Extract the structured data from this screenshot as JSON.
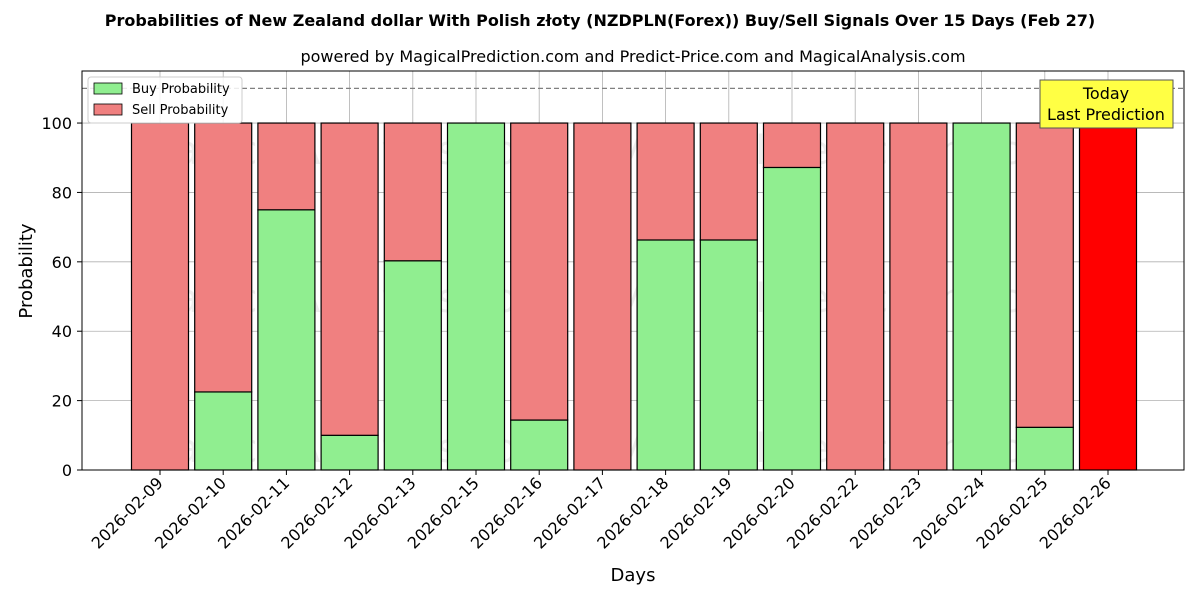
{
  "chart_data": {
    "type": "bar",
    "stacked": true,
    "title": "Probabilities of New Zealand dollar With Polish złoty (NZDPLN(Forex)) Buy/Sell Signals Over 15 Days (Feb 27)",
    "subtitle": "powered by MagicalPrediction.com and Predict-Price.com and MagicalAnalysis.com",
    "xlabel": "Days",
    "ylabel": "Probability",
    "ylim": [
      0,
      115
    ],
    "yticks": [
      0,
      20,
      40,
      60,
      80,
      100
    ],
    "grid": true,
    "legend_position": "top-left",
    "reference_line": 110,
    "categories": [
      "2026-02-09",
      "2026-02-10",
      "2026-02-11",
      "2026-02-12",
      "2026-02-13",
      "2026-02-15",
      "2026-02-16",
      "2026-02-17",
      "2026-02-18",
      "2026-02-19",
      "2026-02-20",
      "2026-02-22",
      "2026-02-23",
      "2026-02-24",
      "2026-02-25",
      "2026-02-26"
    ],
    "series": [
      {
        "name": "Buy Probability",
        "color": "#90EE90",
        "values": [
          0,
          22.5,
          75,
          10,
          60.3,
          100,
          14.4,
          0,
          66.3,
          66.3,
          87.2,
          0,
          0,
          100,
          12.3,
          0
        ]
      },
      {
        "name": "Sell Probability",
        "color": "#F08080",
        "values": [
          100,
          77.5,
          25,
          90,
          39.7,
          0,
          85.6,
          100,
          33.7,
          33.7,
          12.8,
          100,
          100,
          0,
          87.7,
          100
        ]
      }
    ],
    "highlight": {
      "category": "2026-02-26",
      "color": "#FF0000",
      "label_line1": "Today",
      "label_line2": "Last Prediction",
      "label_bg": "#FFFF44"
    },
    "watermarks": [
      "MagicalAnalysis.com",
      "MagicalPrediction.com"
    ]
  }
}
